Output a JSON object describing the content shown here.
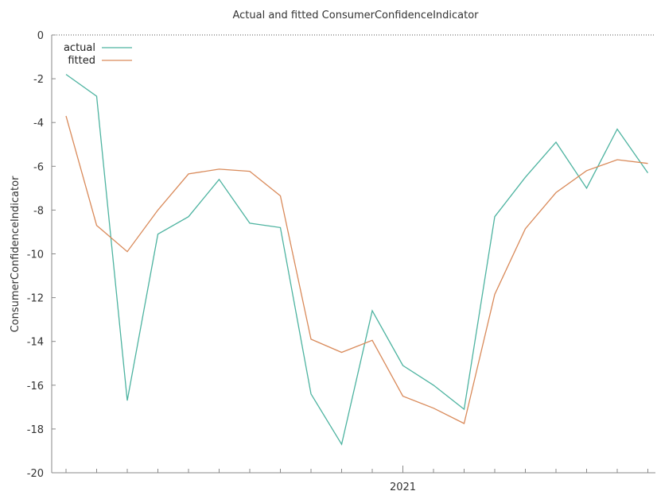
{
  "chart_data": {
    "type": "line",
    "title": "Actual and fitted ConsumerConfidenceIndicator",
    "xlabel": "",
    "ylabel": "ConsumerConfidenceIndicator",
    "ylim": [
      -20,
      0
    ],
    "yticks": [
      0,
      -2,
      -4,
      -6,
      -8,
      -10,
      -12,
      -14,
      -16,
      -18,
      -20
    ],
    "x_count": 20,
    "x_tick_labels": [
      {
        "index": 11,
        "label": "2021"
      }
    ],
    "zero_line": "dotted",
    "legend_position": "top-left",
    "series": [
      {
        "name": "actual",
        "color": "#4db3a0",
        "values": [
          -1.8,
          -2.8,
          -16.7,
          -9.1,
          -8.3,
          -6.6,
          -8.6,
          -8.8,
          -16.4,
          -18.7,
          -12.6,
          -15.1,
          -16.0,
          -17.1,
          -8.3,
          -6.5,
          -4.9,
          -7.0,
          -4.3,
          -6.3
        ]
      },
      {
        "name": "fitted",
        "color": "#d98a5a",
        "values": [
          -3.7,
          -8.7,
          -9.9,
          -8.0,
          -6.35,
          -6.13,
          -6.23,
          -7.35,
          -13.9,
          -14.5,
          -13.95,
          -16.5,
          -17.05,
          -17.75,
          -11.85,
          -8.85,
          -7.2,
          -6.2,
          -5.7,
          -5.87
        ]
      }
    ]
  }
}
